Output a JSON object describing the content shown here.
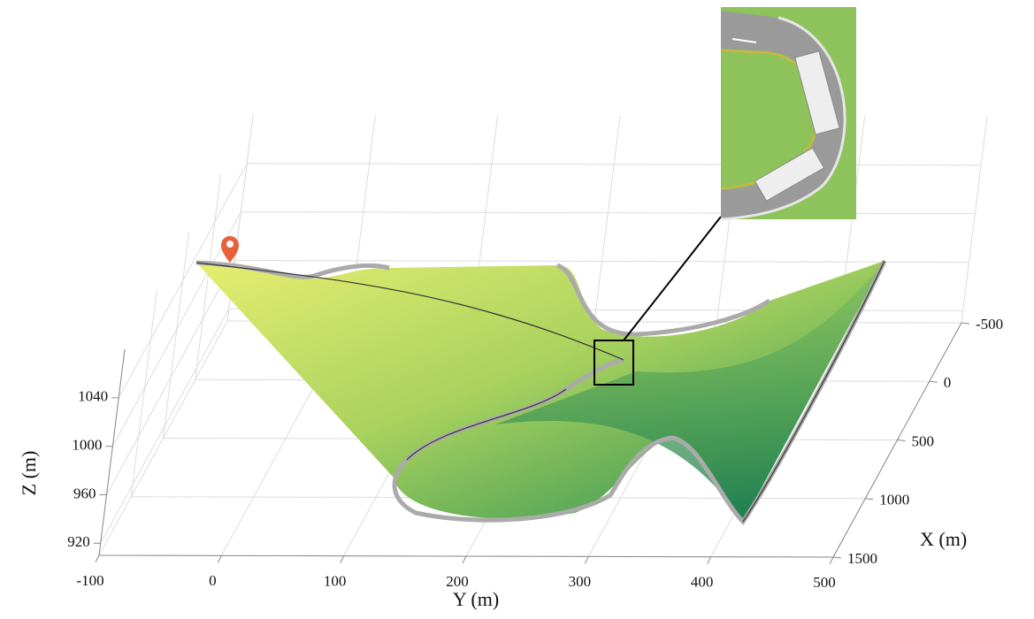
{
  "chart_data": {
    "type": "surface3d",
    "xlabel": "X (m)",
    "ylabel": "Y (m)",
    "zlabel": "Z (m)",
    "xlim": [
      -500,
      1500
    ],
    "ylim": [
      -100,
      500
    ],
    "zlim": [
      910,
      1080
    ],
    "xticks": [
      -500,
      0,
      500,
      1000,
      1500
    ],
    "yticks": [
      -100,
      0,
      100,
      200,
      300,
      400,
      500
    ],
    "zticks": [
      920,
      960,
      1000,
      1040
    ],
    "grid": true
  }
}
